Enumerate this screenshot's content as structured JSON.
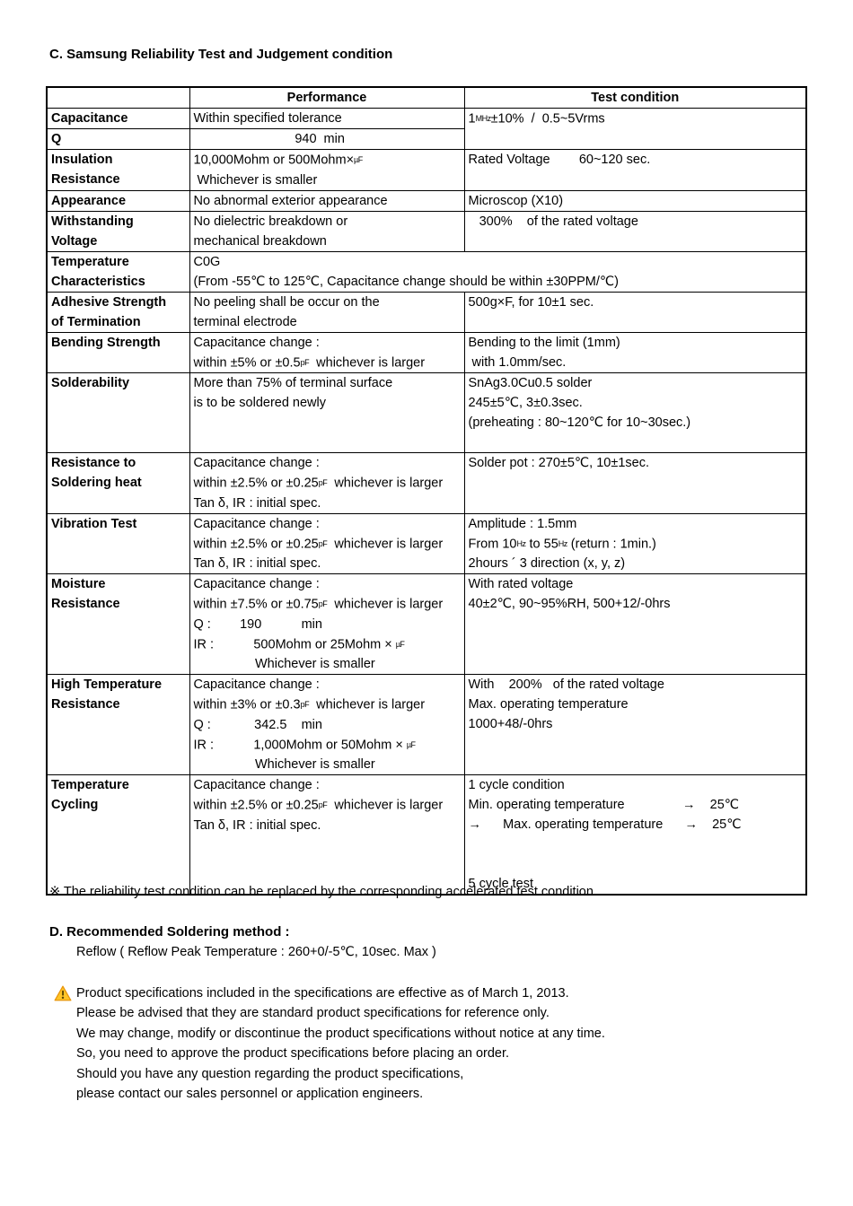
{
  "section_c": {
    "title": "C. Samsung Reliability Test and Judgement condition",
    "footnote": "※ The reliability test condition can be replaced by the corresponding accelerated test condition."
  },
  "table": {
    "header": {
      "performance": "Performance",
      "test_condition": "Test condition"
    },
    "rows": {
      "capacitance": {
        "label": "Capacitance",
        "performance": "Within specified tolerance",
        "test": "1㎒±10%  /  0.5~5Vrms"
      },
      "q": {
        "label": "Q",
        "performance": "                            940  min"
      },
      "insulation": {
        "label": "Insulation\nResistance",
        "performance": "10,000Mohm or 500Mohm×㎌\n Whichever is smaller",
        "test": "Rated Voltage        60~120 sec."
      },
      "appearance": {
        "label": "Appearance",
        "performance": "No abnormal exterior appearance",
        "test": "Microscop (X10)"
      },
      "withstanding": {
        "label": "Withstanding\nVoltage",
        "performance": "No dielectric breakdown or\nmechanical breakdown",
        "test": "   300%    of the rated voltage"
      },
      "temp_characteristics": {
        "label": "Temperature\nCharacteristics",
        "combined": "C0G\n(From -55℃ to 125℃, Capacitance change should be within ±30PPM/℃)"
      },
      "adhesive": {
        "label": "Adhesive Strength\nof Termination",
        "performance": "No peeling shall be occur on the\nterminal electrode",
        "test": "500g×F, for 10±1 sec."
      },
      "bending": {
        "label": "Bending Strength",
        "performance": "Capacitance change :\nwithin ±5% or ±0.5㎊  whichever is larger",
        "test": "Bending to the limit (1mm)\n with 1.0mm/sec."
      },
      "solderability": {
        "label": "Solderability",
        "performance": "More than 75% of terminal surface\nis to be soldered newly",
        "test": "SnAg3.0Cu0.5 solder\n245±5℃, 3±0.3sec.\n(preheating : 80~120℃ for 10~30sec.)"
      },
      "soldering_heat": {
        "label": "Resistance to\nSoldering heat",
        "performance": "Capacitance change :\nwithin ±2.5% or ±0.25㎊  whichever is larger\nTan δ, IR : initial spec.",
        "test": "Solder pot : 270±5℃, 10±1sec."
      },
      "vibration": {
        "label": "Vibration Test",
        "performance": "Capacitance change :\nwithin ±2.5% or ±0.25㎊  whichever is larger\nTan δ, IR : initial spec.",
        "test": "Amplitude : 1.5mm\nFrom 10㎐ to 55㎐ (return : 1min.)\n2hours ´ 3 direction (x, y, z)"
      },
      "moisture": {
        "label": "Moisture\nResistance",
        "performance": "Capacitance change :\nwithin ±7.5% or ±0.75㎊  whichever is larger\nQ :        190           min\nIR :           500Mohm or 25Mohm × ㎌\n                 Whichever is smaller",
        "test": "With rated voltage\n40±2℃, 90~95%RH, 500+12/-0hrs"
      },
      "high_temp": {
        "label": "High Temperature\nResistance",
        "performance": "Capacitance change :\nwithin ±3% or ±0.3㎊  whichever is larger\nQ :            342.5    min\nIR :           1,000Mohm or 50Mohm × ㎌\n                 Whichever is smaller",
        "test": "With    200%   of the rated voltage\nMax. operating temperature\n1000+48/-0hrs"
      },
      "temp_cycling": {
        "label": "Temperature\nCycling",
        "performance": "Capacitance change :\nwithin ±2.5% or ±0.25㎊  whichever is larger\nTan δ, IR : initial spec.",
        "test": "1 cycle condition\nMin. operating temperature                →    25℃\n→      Max. operating temperature      →    25℃\n\n\n5 cycle test"
      }
    }
  },
  "section_d": {
    "title": "D. Recommended Soldering method :",
    "body": "Reflow ( Reflow Peak Temperature : 260+0/-5℃, 10sec. Max )"
  },
  "disclaimer": {
    "icon": "warning-triangle",
    "lines": [
      "Product specifications included in the specifications are effective as of March 1, 2013.",
      "Please be advised that they are standard product specifications for reference only.",
      "We may change, modify or discontinue the product specifications without notice at any time.",
      "So, you need to approve the product specifications before placing an order.",
      "Should you have any question regarding the product specifications,",
      "please contact our sales personnel or application engineers."
    ]
  }
}
